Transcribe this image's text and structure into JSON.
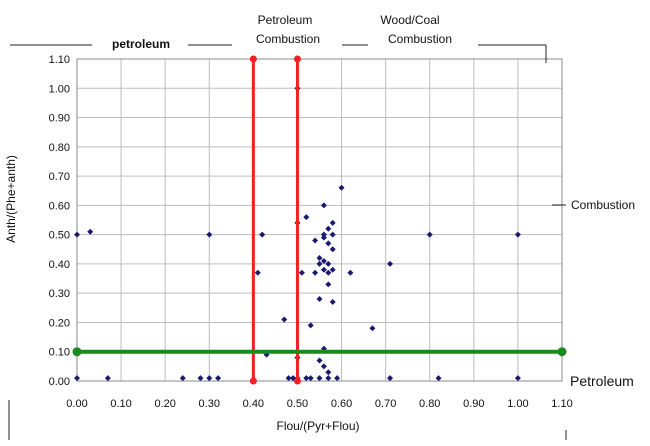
{
  "chart_data": {
    "type": "scatter",
    "title": "",
    "xlabel": "Flou/(Pyr+Flou)",
    "ylabel": "Anth/(Phe+anth)",
    "xlim": [
      0,
      1.1
    ],
    "ylim": [
      0,
      1.1
    ],
    "x_ticks": [
      "0.00",
      "0.10",
      "0.20",
      "0.30",
      "0.40",
      "0.50",
      "0.60",
      "0.70",
      "0.80",
      "0.90",
      "1.00",
      "1.10"
    ],
    "y_ticks": [
      "0.00",
      "0.10",
      "0.20",
      "0.30",
      "0.40",
      "0.50",
      "0.60",
      "0.70",
      "0.80",
      "0.90",
      "1.00",
      "1.10"
    ],
    "grid": true,
    "marker_color": "#1a1a6e",
    "region_labels": {
      "petroleum": "petroleum",
      "petroleum_combustion_line1": "Petroleum",
      "petroleum_combustion_line2": "Combustion",
      "wood_coal_line1": "Wood/Coal",
      "wood_coal_line2": "Combustion",
      "combustion": "Combustion",
      "petroleum_side": "Petroleum"
    },
    "threshold_lines": [
      {
        "orientation": "vertical",
        "value": 0.4,
        "color": "#ee2222"
      },
      {
        "orientation": "vertical",
        "value": 0.5,
        "color": "#ee2222"
      },
      {
        "orientation": "horizontal",
        "value": 0.1,
        "color": "#1a8a1a"
      }
    ],
    "series": [
      {
        "points": [
          [
            0.0,
            0.5
          ],
          [
            0.03,
            0.51
          ],
          [
            0.3,
            0.5
          ],
          [
            0.42,
            0.5
          ],
          [
            0.0,
            0.01
          ],
          [
            0.07,
            0.01
          ],
          [
            0.24,
            0.01
          ],
          [
            0.28,
            0.01
          ],
          [
            0.3,
            0.01
          ],
          [
            0.32,
            0.01
          ],
          [
            0.41,
            0.37
          ],
          [
            0.43,
            0.09
          ],
          [
            0.47,
            0.21
          ],
          [
            0.48,
            0.01
          ],
          [
            0.49,
            0.01
          ],
          [
            0.5,
            1.0
          ],
          [
            0.5,
            0.54
          ],
          [
            0.51,
            0.37
          ],
          [
            0.5,
            0.08
          ],
          [
            0.5,
            0.01
          ],
          [
            0.52,
            0.56
          ],
          [
            0.53,
            0.19
          ],
          [
            0.54,
            0.48
          ],
          [
            0.54,
            0.37
          ],
          [
            0.55,
            0.42
          ],
          [
            0.55,
            0.4
          ],
          [
            0.55,
            0.28
          ],
          [
            0.55,
            0.07
          ],
          [
            0.56,
            0.6
          ],
          [
            0.56,
            0.5
          ],
          [
            0.56,
            0.49
          ],
          [
            0.56,
            0.41
          ],
          [
            0.56,
            0.38
          ],
          [
            0.56,
            0.11
          ],
          [
            0.56,
            0.05
          ],
          [
            0.57,
            0.52
          ],
          [
            0.57,
            0.47
          ],
          [
            0.57,
            0.4
          ],
          [
            0.57,
            0.33
          ],
          [
            0.57,
            0.37
          ],
          [
            0.57,
            0.03
          ],
          [
            0.58,
            0.54
          ],
          [
            0.58,
            0.5
          ],
          [
            0.58,
            0.45
          ],
          [
            0.58,
            0.27
          ],
          [
            0.58,
            0.38
          ],
          [
            0.6,
            0.66
          ],
          [
            0.62,
            0.37
          ],
          [
            0.67,
            0.18
          ],
          [
            0.71,
            0.4
          ],
          [
            0.71,
            0.01
          ],
          [
            0.8,
            0.5
          ],
          [
            0.82,
            0.01
          ],
          [
            1.0,
            0.5
          ],
          [
            1.0,
            0.01
          ],
          [
            0.52,
            0.01
          ],
          [
            0.53,
            0.01
          ],
          [
            0.55,
            0.01
          ],
          [
            0.57,
            0.01
          ],
          [
            0.59,
            0.01
          ]
        ]
      }
    ]
  }
}
